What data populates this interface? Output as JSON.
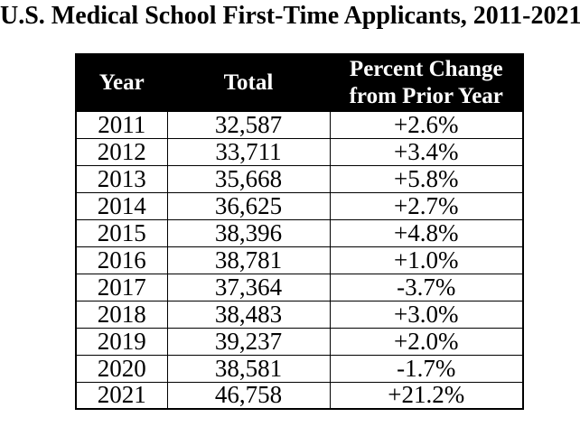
{
  "title": "U.S. Medical School First-Time Applicants, 2011-2021",
  "colors": {
    "header_bg": "#000000",
    "header_text": "#ffffff",
    "body_bg": "#ffffff",
    "body_text": "#000000",
    "border": "#000000"
  },
  "table": {
    "columns": [
      "Year",
      "Total",
      "Percent Change from Prior Year"
    ],
    "rows": [
      {
        "year": "2011",
        "total": "32,587",
        "pct": "+2.6%"
      },
      {
        "year": "2012",
        "total": "33,711",
        "pct": "+3.4%"
      },
      {
        "year": "2013",
        "total": "35,668",
        "pct": "+5.8%"
      },
      {
        "year": "2014",
        "total": "36,625",
        "pct": "+2.7%"
      },
      {
        "year": "2015",
        "total": "38,396",
        "pct": "+4.8%"
      },
      {
        "year": "2016",
        "total": "38,781",
        "pct": "+1.0%"
      },
      {
        "year": "2017",
        "total": "37,364",
        "pct": "-3.7%"
      },
      {
        "year": "2018",
        "total": "38,483",
        "pct": "+3.0%"
      },
      {
        "year": "2019",
        "total": "39,237",
        "pct": "+2.0%"
      },
      {
        "year": "2020",
        "total": "38,581",
        "pct": "-1.7%"
      },
      {
        "year": "2021",
        "total": "46,758",
        "pct": "+21.2%"
      }
    ]
  },
  "chart_data": {
    "type": "table",
    "title": "U.S. Medical School First-Time Applicants, 2011-2021",
    "columns": [
      "Year",
      "Total",
      "Percent Change from Prior Year"
    ],
    "years": [
      2011,
      2012,
      2013,
      2014,
      2015,
      2016,
      2017,
      2018,
      2019,
      2020,
      2021
    ],
    "totals": [
      32587,
      33711,
      35668,
      36625,
      38396,
      38781,
      37364,
      38483,
      39237,
      38581,
      46758
    ],
    "percent_change_from_prior_year": [
      2.6,
      3.4,
      5.8,
      2.7,
      4.8,
      1.0,
      -3.7,
      3.0,
      2.0,
      -1.7,
      21.2
    ]
  }
}
